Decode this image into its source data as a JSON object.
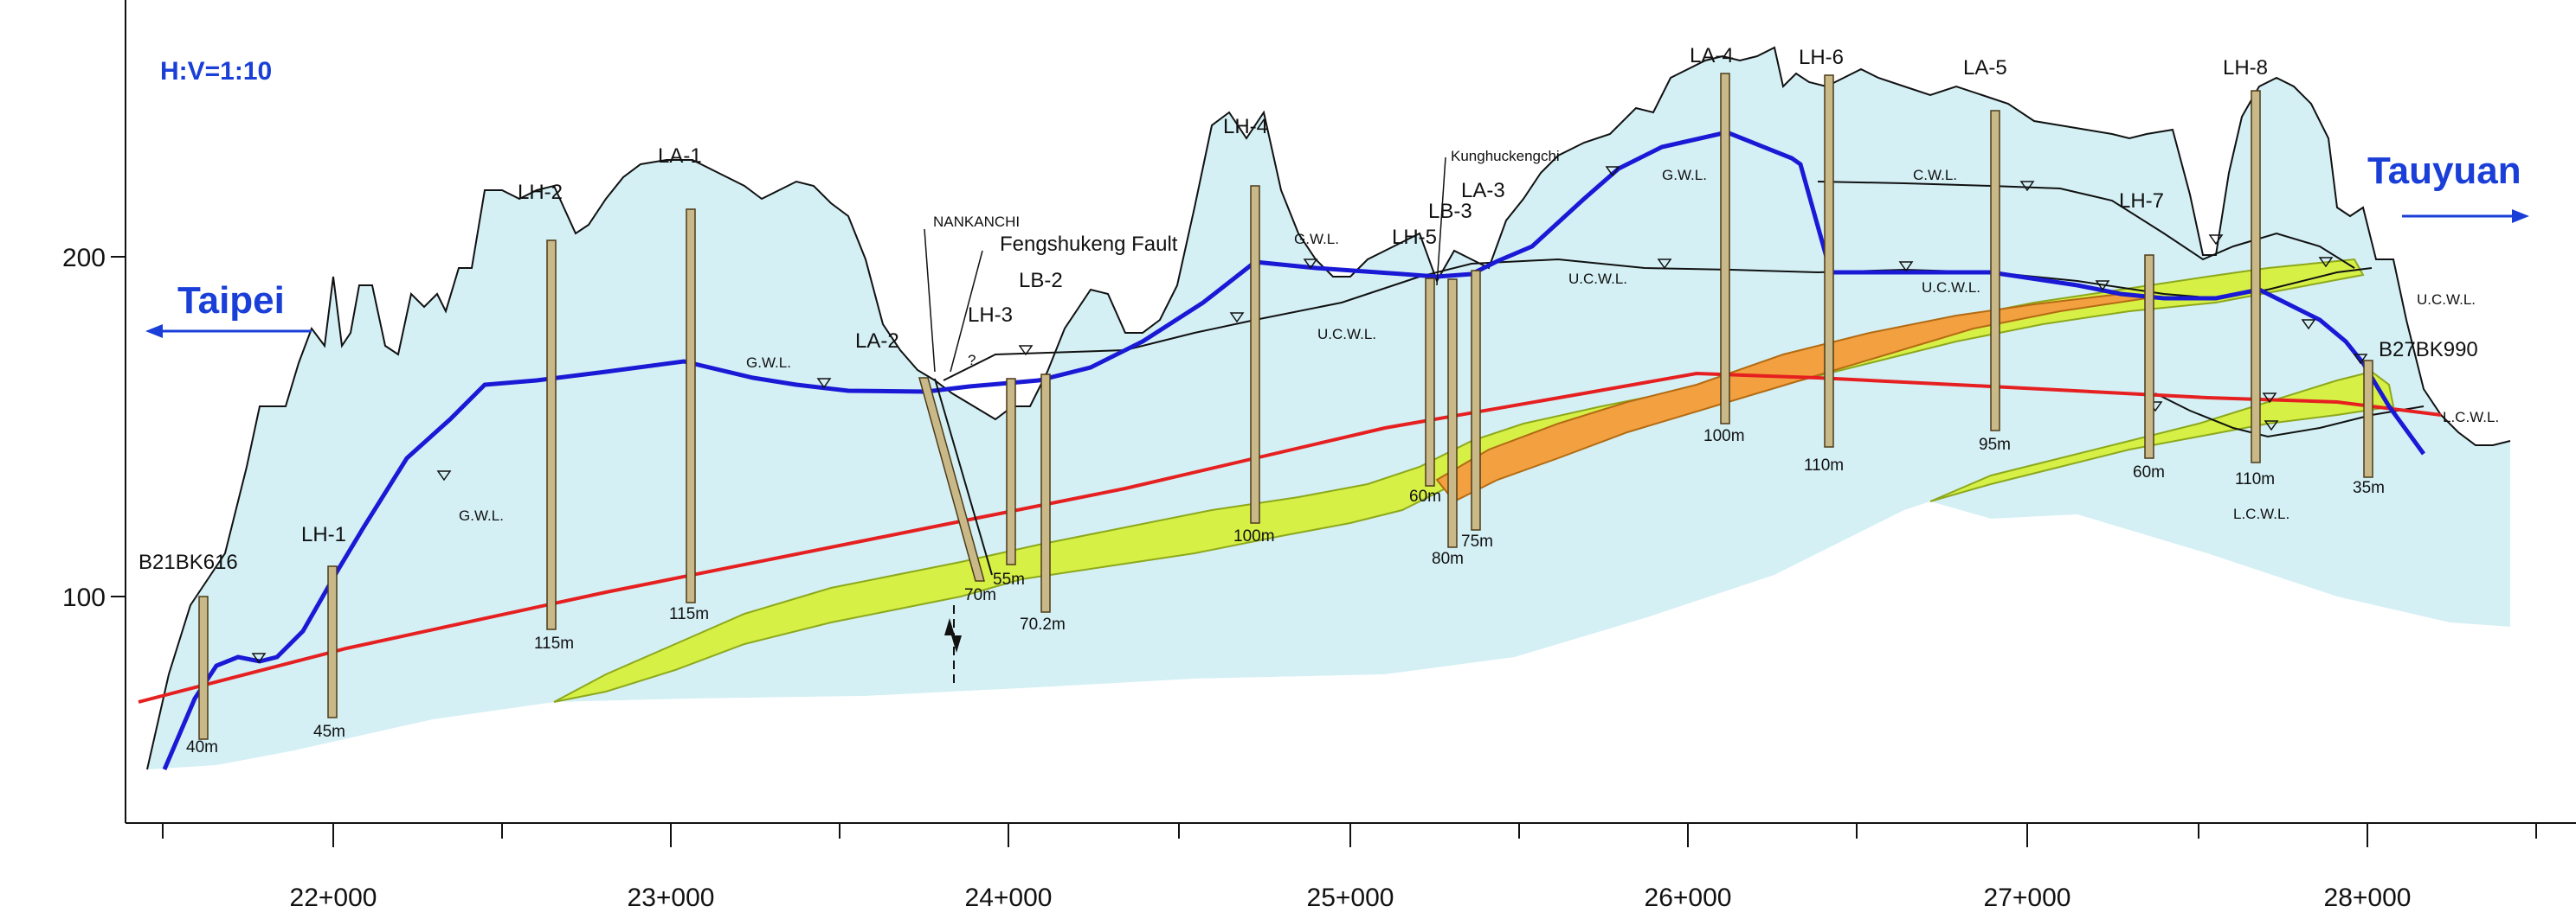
{
  "scale_note": "H:V=1:10",
  "directions": {
    "left": "Taipei",
    "right": "Tauyuan"
  },
  "y_axis": {
    "tick_labels": [
      "200",
      "100"
    ]
  },
  "x_axis": {
    "tick_labels": [
      "22+000",
      "23+000",
      "24+000",
      "25+000",
      "26+000",
      "27+000",
      "28+000"
    ]
  },
  "boreholes": [
    {
      "name": "B21BK616",
      "depth": "40m"
    },
    {
      "name": "LH-1",
      "depth": "45m"
    },
    {
      "name": "LH-2",
      "depth": "115m"
    },
    {
      "name": "LA-1",
      "depth": "115m"
    },
    {
      "name": "LA-2",
      "depth": "70m"
    },
    {
      "name": "LH-3",
      "depth": "55m"
    },
    {
      "name": "LB-2",
      "depth": "70.2m"
    },
    {
      "name": "LH-4",
      "depth": "100m"
    },
    {
      "name": "LH-5",
      "depth": "60m"
    },
    {
      "name": "LB-3",
      "depth": "80m"
    },
    {
      "name": "LA-3",
      "depth": "75m"
    },
    {
      "name": "LA-4",
      "depth": "100m"
    },
    {
      "name": "LH-6",
      "depth": "110m"
    },
    {
      "name": "LA-5",
      "depth": "95m"
    },
    {
      "name": "LH-7",
      "depth": "60m"
    },
    {
      "name": "LH-8",
      "depth": "110m"
    },
    {
      "name": "B27BK990",
      "depth": "35m"
    }
  ],
  "features": {
    "nankanchi": "NANKANCHI",
    "fault": "Fengshukeng Fault",
    "kunghuckengchi": "Kunghuckengchi",
    "question_mark": "?"
  },
  "water_labels": {
    "gwl": "G.W.L.",
    "ucwl": "U.C.W.L.",
    "cwl": "C.W.L.",
    "lcwl": "L.C.W.L."
  },
  "colors": {
    "background_zone": "#d4f0f5",
    "ground_surface": "#111111",
    "yellow_layer": "#d6f046",
    "orange_layer": "#f2a040",
    "tunnel_line": "#e62020",
    "groundwater_line": "#1a1ad6",
    "direction_text": "#1a3ed8",
    "borehole_fill": "#c9b989"
  }
}
